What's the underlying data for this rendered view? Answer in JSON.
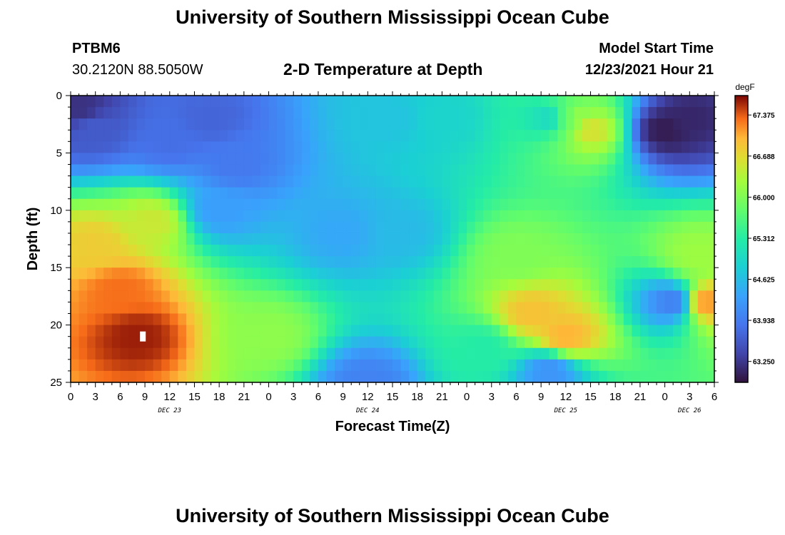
{
  "header": {
    "title_top": "University of Southern Mississippi Ocean Cube",
    "title_bottom": "University of Southern Mississippi Ocean Cube",
    "station_id": "PTBM6",
    "coordinates": "30.2120N  88.5050W",
    "subtitle": "2-D Temperature at Depth",
    "model_start_label": "Model Start Time",
    "model_start_value": "12/23/2021 Hour 21"
  },
  "chart_data": {
    "type": "heatmap",
    "title": "2-D Temperature at Depth",
    "xlabel": "Forecast Time(Z)",
    "ylabel": "Depth (ft)",
    "x_range_hours": [
      0,
      78
    ],
    "ylim": [
      0,
      25
    ],
    "y_inverted": true,
    "y_ticks": [
      "0",
      "5",
      "10",
      "15",
      "20",
      "25"
    ],
    "x_tick_labels": [
      "0",
      "3",
      "6",
      "9",
      "12",
      "15",
      "18",
      "21",
      "0",
      "3",
      "6",
      "9",
      "12",
      "15",
      "18",
      "21",
      "0",
      "3",
      "6",
      "9",
      "12",
      "15",
      "18",
      "21",
      "0",
      "3",
      "6"
    ],
    "day_labels": [
      {
        "label": "DEC 23",
        "hour": 12
      },
      {
        "label": "DEC 24",
        "hour": 36
      },
      {
        "label": "DEC 25",
        "hour": 60
      },
      {
        "label": "DEC 26",
        "hour": 75
      }
    ],
    "colorbar": {
      "unit": "degF",
      "min": 62.9,
      "max": 67.7,
      "tick_values": [
        63.25,
        63.938,
        64.625,
        65.312,
        66.0,
        66.688,
        67.375
      ],
      "tick_labels": [
        "63.250",
        "63.938",
        "64.625",
        "65.312",
        "66.000",
        "66.688",
        "67.375"
      ]
    },
    "temperature_features": [
      {
        "hour": 1,
        "depth": 1,
        "temp": 63.2
      },
      {
        "hour": 3,
        "depth": 3,
        "temp": 63.6
      },
      {
        "hour": 12,
        "depth": 4,
        "temp": 63.8
      },
      {
        "hour": 17,
        "depth": 2,
        "temp": 63.7
      },
      {
        "hour": 18,
        "depth": 10,
        "temp": 64.3
      },
      {
        "hour": 33,
        "depth": 12,
        "temp": 64.4
      },
      {
        "hour": 39,
        "depth": 2,
        "temp": 64.7
      },
      {
        "hour": 45,
        "depth": 2,
        "temp": 64.9
      },
      {
        "hour": 58,
        "depth": 2,
        "temp": 65.0
      },
      {
        "hour": 60,
        "depth": 2,
        "temp": 65.6
      },
      {
        "hour": 61,
        "depth": 2,
        "temp": 66.2
      },
      {
        "hour": 63,
        "depth": 3,
        "temp": 66.6
      },
      {
        "hour": 72,
        "depth": 3,
        "temp": 63.0
      },
      {
        "hour": 75,
        "depth": 2,
        "temp": 63.1
      },
      {
        "hour": 73,
        "depth": 18,
        "temp": 64.0
      },
      {
        "hour": 58,
        "depth": 24,
        "temp": 64.2
      },
      {
        "hour": 36,
        "depth": 25,
        "temp": 64.0
      },
      {
        "hour": 6,
        "depth": 17,
        "temp": 67.3
      },
      {
        "hour": 8,
        "depth": 21,
        "temp": 67.6
      },
      {
        "hour": 3,
        "depth": 13,
        "temp": 66.8
      },
      {
        "hour": 10,
        "depth": 11,
        "temp": 66.5
      },
      {
        "hour": 24,
        "depth": 21,
        "temp": 66.1
      },
      {
        "hour": 56,
        "depth": 19,
        "temp": 66.9
      },
      {
        "hour": 60,
        "depth": 21,
        "temp": 67.0
      },
      {
        "hour": 54,
        "depth": 14,
        "temp": 66.0
      },
      {
        "hour": 77,
        "depth": 18,
        "temp": 67.1
      },
      {
        "hour": 76,
        "depth": 14,
        "temp": 66.2
      },
      {
        "hour": 50,
        "depth": 22,
        "temp": 65.3
      },
      {
        "hour": 20,
        "depth": 6,
        "temp": 63.9
      },
      {
        "hour": 40,
        "depth": 12,
        "temp": 64.6
      }
    ],
    "min_marker": {
      "hour": 8.75,
      "depth": 21
    }
  }
}
